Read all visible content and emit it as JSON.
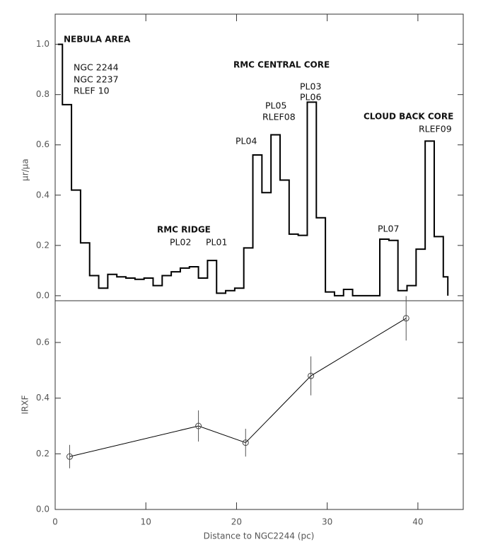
{
  "chart_data": [
    {
      "type": "histogram",
      "ylabel": "μr/μa",
      "bins": [
        0.3,
        0.8,
        1.8,
        2.8,
        3.8,
        4.8,
        5.8,
        6.8,
        7.8,
        8.8,
        9.8,
        10.8,
        11.8,
        12.8,
        13.8,
        14.8,
        15.8,
        16.8,
        17.8,
        18.8,
        19.8,
        20.8,
        21.8,
        22.8,
        23.8,
        24.8,
        25.8,
        26.8,
        27.8,
        28.8,
        29.8,
        30.8,
        31.8,
        32.8,
        33.8,
        34.8,
        35.8,
        36.8,
        37.8,
        38.8,
        39.8,
        40.8,
        41.8,
        42.8,
        43.3
      ],
      "values": [
        1.0,
        0.76,
        0.42,
        0.21,
        0.08,
        0.03,
        0.085,
        0.075,
        0.07,
        0.065,
        0.07,
        0.04,
        0.08,
        0.095,
        0.11,
        0.115,
        0.07,
        0.14,
        0.01,
        0.02,
        0.03,
        0.19,
        0.56,
        0.41,
        0.64,
        0.46,
        0.245,
        0.24,
        0.77,
        0.31,
        0.015,
        0.0,
        0.025,
        0.0,
        0.0,
        0.0,
        0.225,
        0.22,
        0.02,
        0.04,
        0.185,
        0.615,
        0.235,
        0.075
      ],
      "color": "#000000",
      "xlim": [
        0,
        45
      ],
      "ylim": [
        -0.02,
        1.12
      ],
      "yticks": [
        {
          "value": 0,
          "label": "0.0"
        },
        {
          "value": 0.2,
          "label": "0.2"
        },
        {
          "value": 0.4,
          "label": "0.4"
        },
        {
          "value": 0.6,
          "label": "0.6"
        },
        {
          "value": 0.8,
          "label": "0.8"
        },
        {
          "value": 1,
          "label": "1.0"
        }
      ],
      "annotations": [
        "NEBULA AREA",
        "NGC 2244",
        "NGC 2237",
        "RLEF 10",
        "RMC CENTRAL CORE",
        "PL03",
        "PL06",
        "PL05",
        "RLEF08",
        "PL04",
        "CLOUD BACK CORE",
        "RLEF09",
        "RMC RIDGE",
        "PL02",
        "PL01",
        "PL07"
      ]
    },
    {
      "type": "errorline",
      "xlabel": "Distance to NGC2244 (pc)",
      "ylabel": "IRXF",
      "x": [
        1.6,
        15.8,
        21.0,
        28.2,
        38.7
      ],
      "values": [
        0.19,
        0.3,
        0.24,
        0.48,
        0.687
      ],
      "errors": [
        0.042,
        0.056,
        0.05,
        0.07,
        0.08
      ],
      "color": "#000000",
      "xlim": [
        0,
        45
      ],
      "ylim": [
        0,
        0.75
      ],
      "xticks": [
        0,
        10,
        20,
        30,
        40
      ],
      "yticks": [
        {
          "value": 0,
          "label": "0.0"
        },
        {
          "value": 0.2,
          "label": "0.2"
        },
        {
          "value": 0.4,
          "label": "0.4"
        },
        {
          "value": 0.6,
          "label": "0.6"
        }
      ]
    }
  ]
}
